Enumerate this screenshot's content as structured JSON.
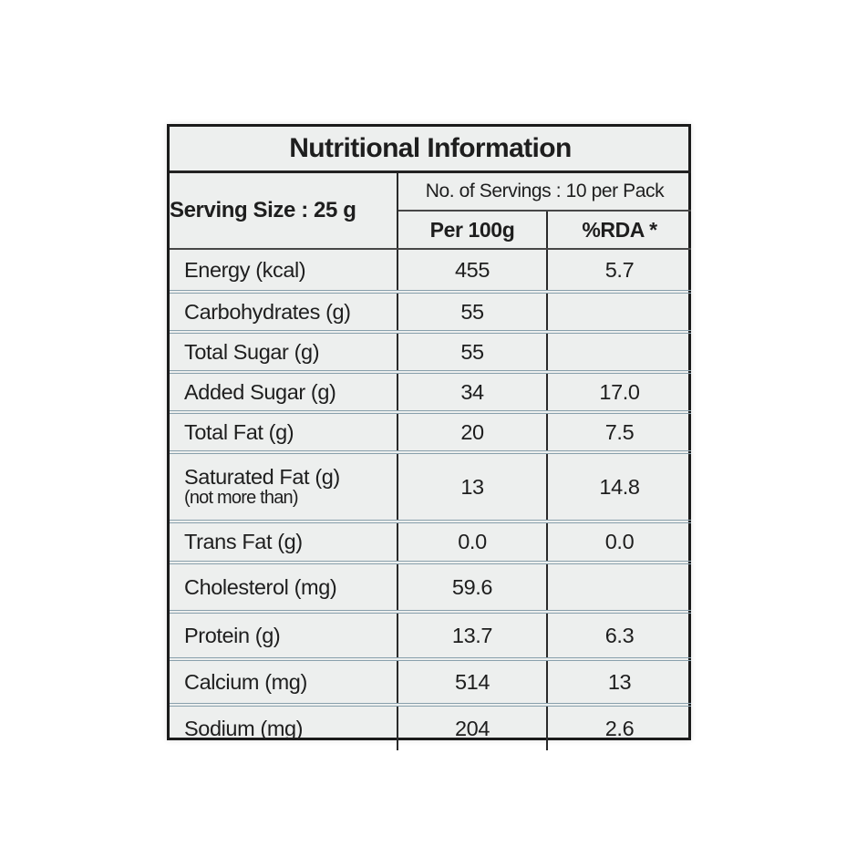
{
  "table": {
    "title": "Nutritional Information",
    "serving_size": "Serving Size : 25 g",
    "servings_info": "No. of Servings : 10 per Pack",
    "columns": {
      "per_100g": "Per 100g",
      "rda": "%RDA *"
    }
  },
  "rows": [
    {
      "label": "Energy (kcal)",
      "sublabel": "",
      "per_100g": "455",
      "rda": "5.7"
    },
    {
      "label": "Carbohydrates (g)",
      "sublabel": "",
      "per_100g": "55",
      "rda": ""
    },
    {
      "label": "Total Sugar (g)",
      "sublabel": "",
      "per_100g": "55",
      "rda": ""
    },
    {
      "label": "Added Sugar (g)",
      "sublabel": "",
      "per_100g": "34",
      "rda": "17.0"
    },
    {
      "label": "Total Fat (g)",
      "sublabel": "",
      "per_100g": "20",
      "rda": "7.5"
    },
    {
      "label": "Saturated Fat (g)",
      "sublabel": "(not more than)",
      "per_100g": "13",
      "rda": "14.8"
    },
    {
      "label": "Trans Fat (g)",
      "sublabel": "",
      "per_100g": "0.0",
      "rda": "0.0"
    },
    {
      "label": "Cholesterol (mg)",
      "sublabel": "",
      "per_100g": "59.6",
      "rda": ""
    },
    {
      "label": "Protein (g)",
      "sublabel": "",
      "per_100g": "13.7",
      "rda": "6.3"
    },
    {
      "label": "Calcium (mg)",
      "sublabel": "",
      "per_100g": "514",
      "rda": "13"
    },
    {
      "label": "Sodium (mg)",
      "sublabel": "",
      "per_100g": "204",
      "rda": "2.6"
    }
  ],
  "colors": {
    "card_background": "#edefee",
    "outer_border": "#1b1b1b",
    "row_separator": "#89a0ac",
    "text": "#1e1e1e"
  }
}
